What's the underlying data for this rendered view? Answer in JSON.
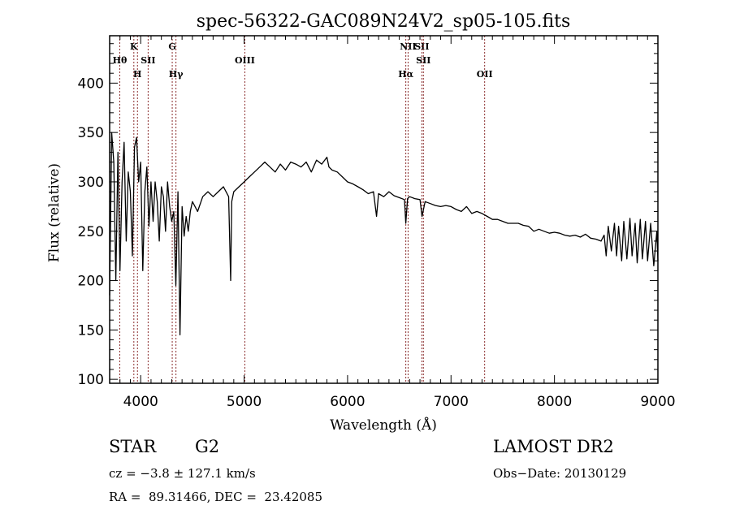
{
  "chart_data": {
    "type": "line",
    "title": "spec-56322-GAC089N24V2_sp05-105.fits",
    "xlabel": "Wavelength (Å)",
    "ylabel": "Flux (relative)",
    "xlim": [
      3700,
      9000
    ],
    "ylim": [
      96,
      448
    ],
    "xticks": [
      4000,
      5000,
      6000,
      7000,
      8000,
      9000
    ],
    "xtick_labels": [
      "4000",
      "5000",
      "6000",
      "7000",
      "8000",
      "9000"
    ],
    "yticks": [
      100,
      150,
      200,
      250,
      300,
      350,
      400
    ],
    "ytick_labels": [
      "100",
      "150",
      "200",
      "250",
      "300",
      "350",
      "400"
    ],
    "grid": false,
    "line_color": "#000000",
    "marker_color": "#8b2e2e",
    "spectral_lines": [
      {
        "name": "Hθ",
        "wavelength": 3798,
        "row": 2
      },
      {
        "name": "K",
        "wavelength": 3934,
        "row": 1
      },
      {
        "name": "H",
        "wavelength": 3969,
        "row": 3
      },
      {
        "name": "SII",
        "wavelength": 4072,
        "row": 2
      },
      {
        "name": "G",
        "wavelength": 4305,
        "row": 1
      },
      {
        "name": "Hγ",
        "wavelength": 4341,
        "row": 3
      },
      {
        "name": "OIII",
        "wavelength": 5007,
        "row": 2
      },
      {
        "name": "Hα",
        "wavelength": 6563,
        "row": 3
      },
      {
        "name": "NII",
        "wavelength": 6585,
        "row": 1
      },
      {
        "name": "SII",
        "wavelength": 6718,
        "row": 1
      },
      {
        "name": "SII",
        "wavelength": 6733,
        "row": 2
      },
      {
        "name": "OII",
        "wavelength": 7325,
        "row": 3
      }
    ],
    "series": [
      {
        "name": "flux",
        "x": [
          3700,
          3720,
          3740,
          3760,
          3780,
          3800,
          3820,
          3840,
          3860,
          3880,
          3900,
          3920,
          3940,
          3960,
          3980,
          4000,
          4020,
          4040,
          4060,
          4080,
          4100,
          4120,
          4140,
          4160,
          4180,
          4200,
          4220,
          4240,
          4260,
          4280,
          4300,
          4320,
          4340,
          4360,
          4380,
          4400,
          4420,
          4440,
          4460,
          4480,
          4500,
          4550,
          4600,
          4650,
          4700,
          4750,
          4800,
          4850,
          4870,
          4880,
          4900,
          4950,
          5000,
          5050,
          5100,
          5150,
          5200,
          5250,
          5300,
          5350,
          5400,
          5450,
          5500,
          5550,
          5600,
          5650,
          5700,
          5750,
          5800,
          5820,
          5850,
          5900,
          5950,
          6000,
          6050,
          6100,
          6150,
          6200,
          6250,
          6280,
          6300,
          6350,
          6400,
          6450,
          6500,
          6550,
          6563,
          6580,
          6600,
          6650,
          6700,
          6720,
          6750,
          6800,
          6850,
          6900,
          6950,
          7000,
          7050,
          7100,
          7150,
          7200,
          7250,
          7300,
          7350,
          7400,
          7450,
          7500,
          7550,
          7600,
          7650,
          7700,
          7750,
          7800,
          7850,
          7900,
          7950,
          8000,
          8050,
          8100,
          8150,
          8200,
          8250,
          8300,
          8350,
          8400,
          8450,
          8480,
          8500,
          8520,
          8550,
          8580,
          8600,
          8620,
          8650,
          8670,
          8700,
          8730,
          8750,
          8780,
          8800,
          8830,
          8850,
          8880,
          8900,
          8930,
          8960,
          8990,
          9000
        ],
        "y": [
          185,
          350,
          320,
          200,
          330,
          210,
          300,
          340,
          240,
          310,
          290,
          225,
          335,
          345,
          300,
          320,
          210,
          290,
          315,
          255,
          300,
          260,
          300,
          280,
          240,
          295,
          285,
          250,
          300,
          275,
          260,
          270,
          195,
          290,
          145,
          275,
          245,
          265,
          250,
          270,
          280,
          270,
          285,
          290,
          285,
          290,
          295,
          285,
          200,
          280,
          290,
          295,
          300,
          305,
          310,
          315,
          320,
          315,
          310,
          318,
          312,
          320,
          318,
          315,
          320,
          310,
          322,
          318,
          325,
          315,
          312,
          310,
          305,
          300,
          298,
          295,
          292,
          288,
          290,
          265,
          288,
          285,
          290,
          286,
          284,
          282,
          258,
          283,
          285,
          283,
          282,
          265,
          280,
          278,
          276,
          275,
          276,
          275,
          272,
          270,
          275,
          268,
          270,
          268,
          265,
          262,
          262,
          260,
          258,
          258,
          258,
          256,
          255,
          250,
          252,
          250,
          248,
          249,
          248,
          246,
          245,
          246,
          244,
          247,
          243,
          242,
          240,
          246,
          225,
          255,
          230,
          258,
          225,
          255,
          220,
          260,
          222,
          263,
          225,
          258,
          218,
          262,
          222,
          260,
          220,
          258,
          215,
          250,
          220
        ]
      }
    ]
  },
  "info": {
    "object_type": "STAR",
    "subclass": "G2",
    "survey": "LAMOST DR2",
    "redshift_text": "cz = −3.8 ± 127.1 km/s",
    "obs_date": "Obs−Date: 20130129",
    "coords": "RA =  89.31466, DEC =  23.42085"
  }
}
